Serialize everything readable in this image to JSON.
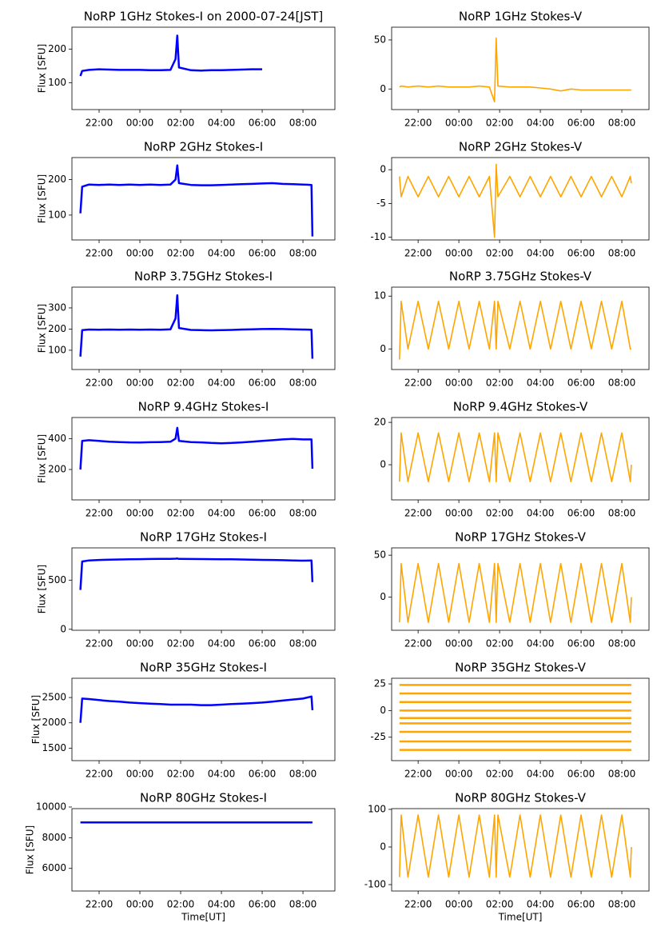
{
  "chart_data": [
    {
      "type": "line",
      "title": "NoRP 1GHz Stokes-I on 2000-07-24[JST]",
      "ylabel": "Flux [SFU]",
      "color": "blue",
      "x": [
        "21:05",
        "21:10",
        "21:30",
        "22:00",
        "22:30",
        "23:00",
        "23:30",
        "00:00",
        "00:30",
        "01:00",
        "01:30",
        "01:45",
        "01:50",
        "01:55",
        "02:30",
        "03:00",
        "03:30",
        "04:00",
        "04:30",
        "05:00",
        "05:30",
        "06:00"
      ],
      "values": [
        120,
        135,
        138,
        140,
        139,
        138,
        138,
        138,
        137,
        137,
        138,
        170,
        240,
        145,
        137,
        136,
        137,
        137,
        138,
        139,
        140,
        140
      ],
      "xlim": [
        "20:40",
        "09:34"
      ],
      "xticks": [
        "22:00",
        "00:00",
        "02:00",
        "04:00",
        "06:00",
        "08:00"
      ],
      "ylim": [
        20,
        265
      ],
      "yticks": [
        100,
        200
      ]
    },
    {
      "type": "line",
      "title": "NoRP 1GHz Stokes-V",
      "color": "orange",
      "x": [
        "21:05",
        "21:10",
        "21:30",
        "22:00",
        "22:30",
        "23:00",
        "23:30",
        "00:00",
        "00:30",
        "01:00",
        "01:30",
        "01:45",
        "01:50",
        "01:55",
        "02:30",
        "03:00",
        "03:30",
        "04:00",
        "04:30",
        "05:00",
        "05:30",
        "06:00",
        "06:30",
        "07:00",
        "07:30",
        "08:00",
        "08:25",
        "08:28"
      ],
      "values": [
        2,
        3,
        2,
        3,
        2,
        3,
        2,
        2,
        2,
        3,
        2,
        -13,
        52,
        3,
        2,
        2,
        2,
        1,
        0,
        -2,
        0,
        -1,
        -1,
        -1,
        -1,
        -1,
        -1,
        -1
      ],
      "xlim": [
        "20:42",
        "09:20"
      ],
      "xticks": [
        "22:00",
        "00:00",
        "02:00",
        "04:00",
        "06:00",
        "08:00"
      ],
      "ylim": [
        -21,
        63
      ],
      "yticks": [
        0,
        50
      ]
    },
    {
      "type": "line",
      "title": "NoRP 2GHz Stokes-I",
      "ylabel": "Flux [SFU]",
      "color": "blue",
      "x": [
        "21:05",
        "21:10",
        "21:30",
        "22:00",
        "22:30",
        "23:00",
        "23:30",
        "00:00",
        "00:30",
        "01:00",
        "01:30",
        "01:45",
        "01:50",
        "01:55",
        "02:30",
        "03:00",
        "03:30",
        "04:00",
        "04:30",
        "05:00",
        "05:30",
        "06:00",
        "06:30",
        "07:00",
        "07:30",
        "08:00",
        "08:25",
        "08:28"
      ],
      "values": [
        105,
        180,
        186,
        185,
        186,
        185,
        186,
        185,
        186,
        185,
        186,
        200,
        240,
        190,
        185,
        184,
        184,
        185,
        186,
        187,
        188,
        189,
        190,
        188,
        187,
        186,
        185,
        40
      ],
      "xlim": [
        "20:40",
        "09:34"
      ],
      "xticks": [
        "22:00",
        "00:00",
        "02:00",
        "04:00",
        "06:00",
        "08:00"
      ],
      "ylim": [
        30,
        262
      ],
      "yticks": [
        100,
        200
      ]
    },
    {
      "type": "line",
      "title": "NoRP 2GHz Stokes-V",
      "color": "orange",
      "x": [
        "21:05",
        "21:10",
        "21:30",
        "22:00",
        "22:30",
        "23:00",
        "23:30",
        "00:00",
        "00:30",
        "01:00",
        "01:30",
        "01:45",
        "01:50",
        "01:55",
        "02:30",
        "03:00",
        "03:30",
        "04:00",
        "04:30",
        "05:00",
        "05:30",
        "06:00",
        "06:30",
        "07:00",
        "07:30",
        "08:00",
        "08:25",
        "08:28"
      ],
      "values": [
        -1,
        -4,
        -1,
        -4,
        -1,
        -4,
        -1,
        -4,
        -1,
        -4,
        -1,
        -10,
        0.8,
        -4,
        -1,
        -4,
        -1,
        -4,
        -1,
        -4,
        -1,
        -4,
        -1,
        -4,
        -1,
        -4,
        -1,
        -2
      ],
      "xlim": [
        "20:42",
        "09:20"
      ],
      "xticks": [
        "22:00",
        "00:00",
        "02:00",
        "04:00",
        "06:00",
        "08:00"
      ],
      "ylim": [
        -10.4,
        1.8
      ],
      "yticks": [
        -10,
        -5,
        0
      ]
    },
    {
      "type": "line",
      "title": "NoRP 3.75GHz Stokes-I",
      "ylabel": "Flux [SFU]",
      "color": "blue",
      "x": [
        "21:05",
        "21:10",
        "21:30",
        "22:00",
        "22:30",
        "23:00",
        "23:30",
        "00:00",
        "00:30",
        "01:00",
        "01:30",
        "01:45",
        "01:50",
        "01:55",
        "02:30",
        "03:00",
        "03:30",
        "04:00",
        "04:30",
        "05:00",
        "05:30",
        "06:00",
        "06:30",
        "07:00",
        "07:30",
        "08:00",
        "08:25",
        "08:28"
      ],
      "values": [
        70,
        195,
        198,
        197,
        198,
        197,
        198,
        197,
        198,
        197,
        199,
        250,
        360,
        205,
        196,
        195,
        194,
        195,
        196,
        198,
        199,
        200,
        201,
        200,
        199,
        198,
        197,
        60
      ],
      "xlim": [
        "20:40",
        "09:34"
      ],
      "xticks": [
        "22:00",
        "00:00",
        "02:00",
        "04:00",
        "06:00",
        "08:00"
      ],
      "ylim": [
        9,
        398
      ],
      "yticks": [
        100,
        200,
        300
      ]
    },
    {
      "type": "line",
      "title": "NoRP 3.75GHz Stokes-V",
      "color": "orange",
      "x": [
        "21:05",
        "21:10",
        "21:30",
        "22:00",
        "22:30",
        "23:00",
        "23:30",
        "00:00",
        "00:30",
        "01:00",
        "01:30",
        "01:45",
        "01:50",
        "01:55",
        "02:30",
        "03:00",
        "03:30",
        "04:00",
        "04:30",
        "05:00",
        "05:30",
        "06:00",
        "06:30",
        "07:00",
        "07:30",
        "08:00",
        "08:25",
        "08:28"
      ],
      "values": [
        -2,
        9,
        0,
        9,
        0,
        9,
        0,
        9,
        0,
        9,
        0,
        9,
        0,
        9,
        0,
        9,
        0,
        9,
        0,
        9,
        0,
        9,
        0,
        9,
        0,
        9,
        0,
        0
      ],
      "xlim": [
        "20:42",
        "09:20"
      ],
      "xticks": [
        "22:00",
        "00:00",
        "02:00",
        "04:00",
        "06:00",
        "08:00"
      ],
      "ylim": [
        -3.9,
        11.7
      ],
      "yticks": [
        0,
        10
      ]
    },
    {
      "type": "line",
      "title": "NoRP 9.4GHz Stokes-I",
      "ylabel": "Flux [SFU]",
      "color": "blue",
      "x": [
        "21:05",
        "21:10",
        "21:30",
        "22:00",
        "22:30",
        "23:00",
        "23:30",
        "00:00",
        "00:30",
        "01:00",
        "01:30",
        "01:45",
        "01:50",
        "01:55",
        "02:30",
        "03:00",
        "03:30",
        "04:00",
        "04:30",
        "05:00",
        "05:30",
        "06:00",
        "06:30",
        "07:00",
        "07:30",
        "08:00",
        "08:25",
        "08:28"
      ],
      "values": [
        200,
        385,
        390,
        385,
        380,
        378,
        376,
        375,
        377,
        378,
        380,
        400,
        470,
        385,
        378,
        376,
        372,
        370,
        372,
        376,
        380,
        385,
        390,
        395,
        398,
        395,
        395,
        205
      ],
      "xlim": [
        "20:40",
        "09:34"
      ],
      "xticks": [
        "22:00",
        "00:00",
        "02:00",
        "04:00",
        "06:00",
        "08:00"
      ],
      "ylim": [
        3,
        537
      ],
      "yticks": [
        200,
        400
      ]
    },
    {
      "type": "line",
      "title": "NoRP 9.4GHz Stokes-V",
      "color": "orange",
      "x": [
        "21:05",
        "21:10",
        "21:30",
        "22:00",
        "22:30",
        "23:00",
        "23:30",
        "00:00",
        "00:30",
        "01:00",
        "01:30",
        "01:45",
        "01:50",
        "01:55",
        "02:30",
        "03:00",
        "03:30",
        "04:00",
        "04:30",
        "05:00",
        "05:30",
        "06:00",
        "06:30",
        "07:00",
        "07:30",
        "08:00",
        "08:25",
        "08:28"
      ],
      "values": [
        -8,
        15,
        -8,
        15,
        -8,
        15,
        -8,
        15,
        -8,
        15,
        -8,
        15,
        -8,
        15,
        -8,
        15,
        -8,
        15,
        -8,
        15,
        -8,
        15,
        -8,
        15,
        -8,
        15,
        -8,
        0
      ],
      "xlim": [
        "20:42",
        "09:20"
      ],
      "xticks": [
        "22:00",
        "00:00",
        "02:00",
        "04:00",
        "06:00",
        "08:00"
      ],
      "ylim": [
        -16.6,
        22.3
      ],
      "yticks": [
        0,
        20
      ]
    },
    {
      "type": "line",
      "title": "NoRP 17GHz Stokes-I",
      "ylabel": "Flux [SFU]",
      "color": "blue",
      "x": [
        "21:05",
        "21:10",
        "21:30",
        "22:00",
        "22:30",
        "23:00",
        "23:30",
        "00:00",
        "00:30",
        "01:00",
        "01:30",
        "01:45",
        "01:50",
        "01:55",
        "02:30",
        "03:00",
        "03:30",
        "04:00",
        "04:30",
        "05:00",
        "05:30",
        "06:00",
        "06:30",
        "07:00",
        "07:30",
        "08:00",
        "08:25",
        "08:28"
      ],
      "values": [
        400,
        690,
        700,
        705,
        708,
        710,
        712,
        713,
        715,
        716,
        716,
        718,
        720,
        716,
        715,
        714,
        713,
        712,
        712,
        710,
        708,
        706,
        705,
        703,
        700,
        698,
        700,
        480
      ],
      "xlim": [
        "20:40",
        "09:34"
      ],
      "xticks": [
        "22:00",
        "00:00",
        "02:00",
        "04:00",
        "06:00",
        "08:00"
      ],
      "ylim": [
        -10,
        828
      ],
      "yticks": [
        0,
        500
      ]
    },
    {
      "type": "line",
      "title": "NoRP 17GHz Stokes-V",
      "color": "orange",
      "x": [
        "21:05",
        "21:10",
        "21:30",
        "22:00",
        "22:30",
        "23:00",
        "23:30",
        "00:00",
        "00:30",
        "01:00",
        "01:30",
        "01:45",
        "01:50",
        "01:55",
        "02:30",
        "03:00",
        "03:30",
        "04:00",
        "04:30",
        "05:00",
        "05:30",
        "06:00",
        "06:30",
        "07:00",
        "07:30",
        "08:00",
        "08:25",
        "08:28"
      ],
      "values": [
        -30,
        40,
        -30,
        40,
        -30,
        40,
        -30,
        40,
        -30,
        40,
        -30,
        40,
        -30,
        40,
        -30,
        40,
        -30,
        40,
        -30,
        40,
        -30,
        40,
        -30,
        40,
        -30,
        40,
        -30,
        0
      ],
      "xlim": [
        "20:42",
        "09:20"
      ],
      "xticks": [
        "22:00",
        "00:00",
        "02:00",
        "04:00",
        "06:00",
        "08:00"
      ],
      "ylim": [
        -39.4,
        58.7
      ],
      "yticks": [
        0,
        50
      ]
    },
    {
      "type": "line",
      "title": "NoRP 35GHz Stokes-I",
      "ylabel": "Flux [SFU]",
      "color": "blue",
      "x": [
        "21:05",
        "21:10",
        "21:30",
        "22:00",
        "22:30",
        "23:00",
        "23:30",
        "00:00",
        "00:30",
        "01:00",
        "01:30",
        "01:45",
        "01:50",
        "01:55",
        "02:30",
        "03:00",
        "03:30",
        "04:00",
        "04:30",
        "05:00",
        "05:30",
        "06:00",
        "06:30",
        "07:00",
        "07:30",
        "08:00",
        "08:25",
        "08:28"
      ],
      "values": [
        2000,
        2480,
        2470,
        2450,
        2430,
        2420,
        2400,
        2390,
        2380,
        2370,
        2360,
        2360,
        2360,
        2360,
        2360,
        2350,
        2350,
        2360,
        2370,
        2380,
        2390,
        2400,
        2420,
        2440,
        2460,
        2480,
        2520,
        2250
      ],
      "xlim": [
        "20:40",
        "09:34"
      ],
      "xticks": [
        "22:00",
        "00:00",
        "02:00",
        "04:00",
        "06:00",
        "08:00"
      ],
      "ylim": [
        1253,
        2881
      ],
      "yticks": [
        1500,
        2000,
        2500
      ]
    },
    {
      "type": "hlines",
      "title": "NoRP 35GHz Stokes-V",
      "color": "orange",
      "xmin": "21:05",
      "xmax": "08:28",
      "values": [
        24,
        16,
        8,
        0,
        -7,
        -12,
        -20,
        -29,
        -37
      ],
      "xlim": [
        "20:42",
        "09:20"
      ],
      "xticks": [
        "22:00",
        "00:00",
        "02:00",
        "04:00",
        "06:00",
        "08:00"
      ],
      "ylim": [
        -47,
        30.3
      ],
      "yticks": [
        -25,
        0,
        25
      ]
    },
    {
      "type": "line",
      "title": "NoRP 80GHz Stokes-I",
      "ylabel": "Flux [SFU]",
      "xlabel": "Time[UT]",
      "color": "blue",
      "x": [
        "21:05",
        "21:10",
        "21:30",
        "22:00",
        "22:30",
        "23:00",
        "23:30",
        "00:00",
        "00:30",
        "01:00",
        "01:30",
        "01:45",
        "01:50",
        "01:55",
        "02:30",
        "03:00",
        "03:30",
        "04:00",
        "04:30",
        "05:00",
        "05:30",
        "06:00",
        "06:30",
        "07:00",
        "07:30",
        "08:00",
        "08:25",
        "08:28"
      ],
      "values": [
        9000,
        9000,
        9000,
        9000,
        9000,
        9000,
        9000,
        9000,
        9000,
        9000,
        9000,
        9000,
        9000,
        9000,
        9000,
        9000,
        9000,
        9000,
        9000,
        9000,
        9000,
        9000,
        9000,
        9000,
        9000,
        9000,
        9000,
        9000
      ],
      "xlim": [
        "20:40",
        "09:34"
      ],
      "xticks": [
        "22:00",
        "00:00",
        "02:00",
        "04:00",
        "06:00",
        "08:00"
      ],
      "ylim": [
        4526,
        9895
      ],
      "yticks": [
        6000,
        8000,
        10000
      ]
    },
    {
      "type": "line",
      "title": "NoRP 80GHz Stokes-V",
      "xlabel": "Time[UT]",
      "color": "orange",
      "x": [
        "21:05",
        "21:10",
        "21:30",
        "22:00",
        "22:30",
        "23:00",
        "23:30",
        "00:00",
        "00:30",
        "01:00",
        "01:30",
        "01:45",
        "01:50",
        "01:55",
        "02:30",
        "03:00",
        "03:30",
        "04:00",
        "04:30",
        "05:00",
        "05:30",
        "06:00",
        "06:30",
        "07:00",
        "07:30",
        "08:00",
        "08:25",
        "08:28"
      ],
      "values": [
        -80,
        85,
        -80,
        85,
        -80,
        85,
        -80,
        85,
        -80,
        85,
        -80,
        85,
        -80,
        85,
        -80,
        85,
        -80,
        85,
        -80,
        85,
        -80,
        85,
        -80,
        85,
        -80,
        85,
        -80,
        0
      ],
      "xlim": [
        "20:42",
        "09:20"
      ],
      "xticks": [
        "22:00",
        "00:00",
        "02:00",
        "04:00",
        "06:00",
        "08:00"
      ],
      "ylim": [
        -117,
        102
      ],
      "yticks": [
        -100,
        0,
        100
      ]
    }
  ]
}
